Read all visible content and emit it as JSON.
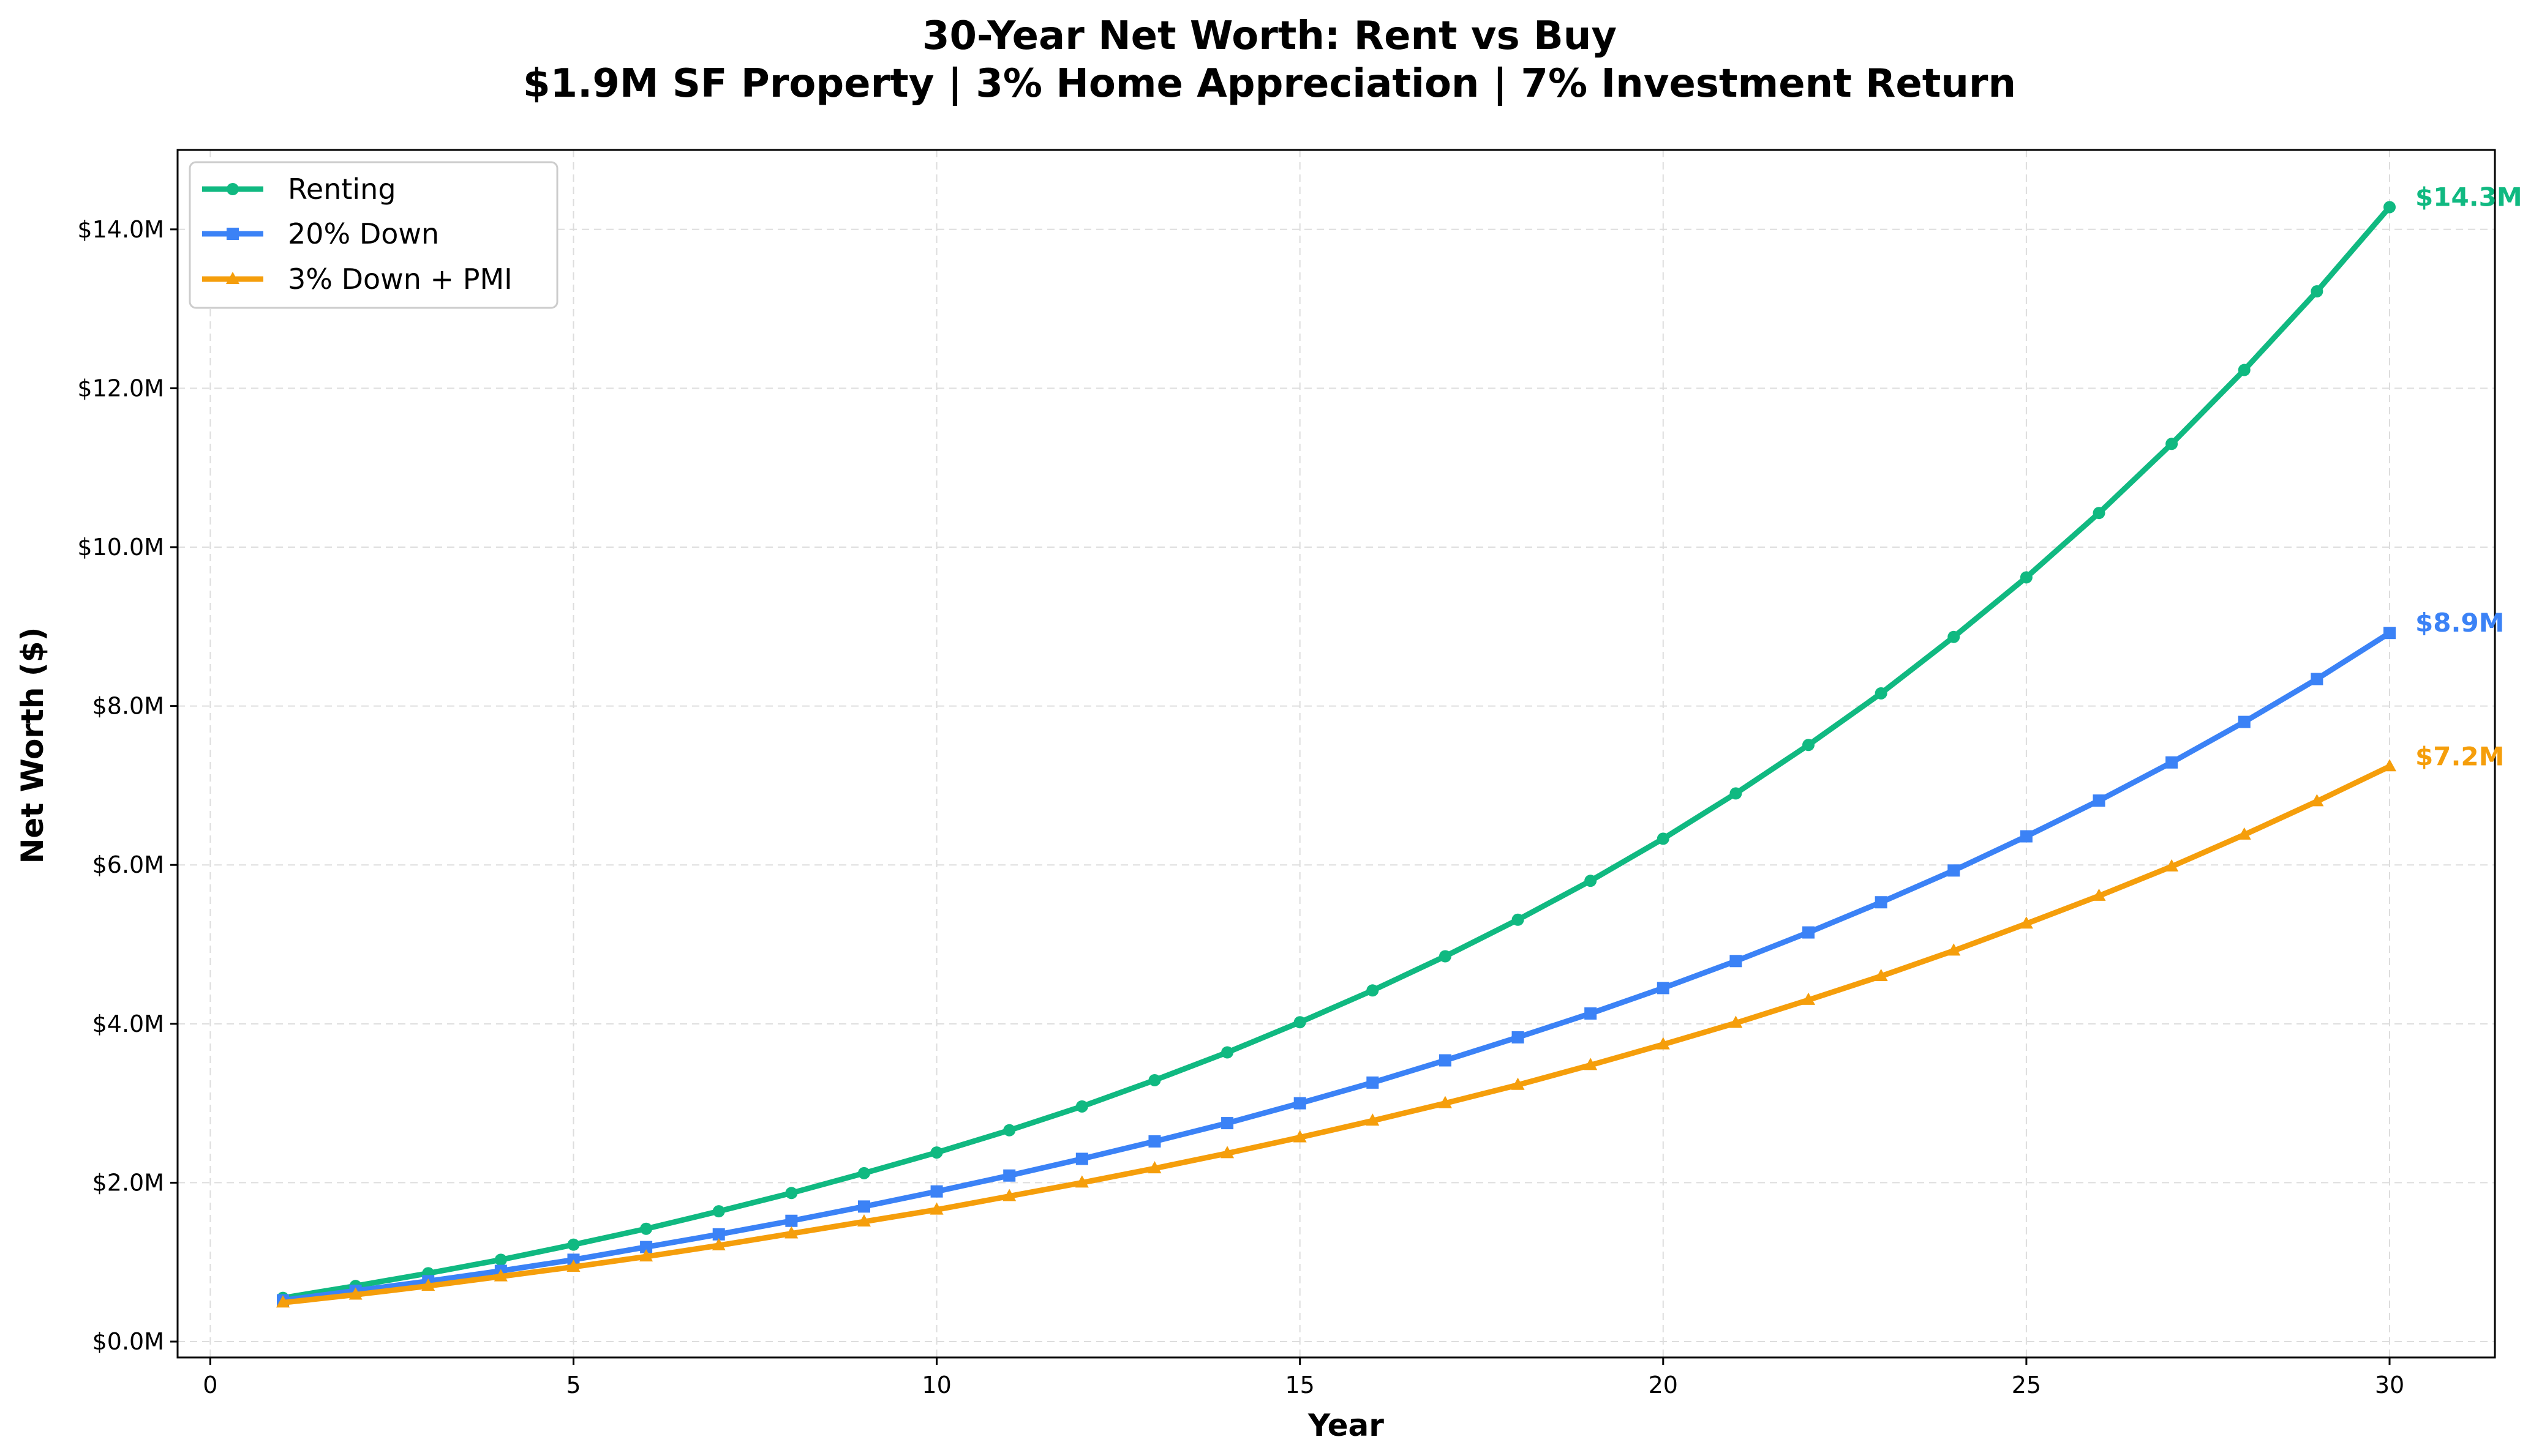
{
  "chart_data": {
    "type": "line",
    "title": "30-Year Net Worth: Rent vs Buy",
    "subtitle": "$1.9M SF Property | 3% Home Appreciation | 7% Investment Return",
    "xlabel": "Year",
    "ylabel": "Net Worth ($)",
    "xlim": [
      -0.45,
      31.45
    ],
    "ylim": [
      -0.2,
      15.0
    ],
    "y_unit": "$M",
    "xticks": [
      0,
      5,
      10,
      15,
      20,
      25,
      30
    ],
    "xtick_labels": [
      "0",
      "5",
      "10",
      "15",
      "20",
      "25",
      "30"
    ],
    "yticks": [
      0,
      2,
      4,
      6,
      8,
      10,
      12,
      14
    ],
    "ytick_labels": [
      "$0.0M",
      "$2.0M",
      "$4.0M",
      "$6.0M",
      "$8.0M",
      "$10.0M",
      "$12.0M",
      "$14.0M"
    ],
    "grid": true,
    "legend_position": "top-left",
    "x": [
      1,
      2,
      3,
      4,
      5,
      6,
      7,
      8,
      9,
      10,
      11,
      12,
      13,
      14,
      15,
      16,
      17,
      18,
      19,
      20,
      21,
      22,
      23,
      24,
      25,
      26,
      27,
      28,
      29,
      30
    ],
    "series": [
      {
        "name": "Renting",
        "color": "#10b981",
        "marker": "circle",
        "values": [
          0.55,
          0.7,
          0.86,
          1.03,
          1.22,
          1.42,
          1.64,
          1.87,
          2.12,
          2.38,
          2.66,
          2.96,
          3.29,
          3.64,
          4.02,
          4.42,
          4.85,
          5.31,
          5.8,
          6.33,
          6.9,
          7.51,
          8.16,
          8.87,
          9.62,
          10.43,
          11.3,
          12.23,
          13.22,
          14.28
        ],
        "end_label": "$14.3M"
      },
      {
        "name": "20% Down",
        "color": "#3b82f6",
        "marker": "square",
        "values": [
          0.52,
          0.64,
          0.76,
          0.89,
          1.03,
          1.19,
          1.35,
          1.52,
          1.7,
          1.89,
          2.09,
          2.3,
          2.52,
          2.75,
          3.0,
          3.26,
          3.54,
          3.83,
          4.13,
          4.45,
          4.79,
          5.15,
          5.53,
          5.93,
          6.36,
          6.81,
          7.29,
          7.8,
          8.34,
          8.92
        ],
        "end_label": "$8.9M"
      },
      {
        "name": "3% Down + PMI",
        "color": "#f59e0b",
        "marker": "triangle",
        "values": [
          0.49,
          0.59,
          0.7,
          0.82,
          0.94,
          1.07,
          1.21,
          1.36,
          1.51,
          1.66,
          1.83,
          2.0,
          2.18,
          2.37,
          2.57,
          2.78,
          3.0,
          3.23,
          3.48,
          3.74,
          4.01,
          4.3,
          4.6,
          4.92,
          5.26,
          5.61,
          5.98,
          6.38,
          6.8,
          7.24
        ],
        "end_label": "$7.2M"
      }
    ]
  }
}
